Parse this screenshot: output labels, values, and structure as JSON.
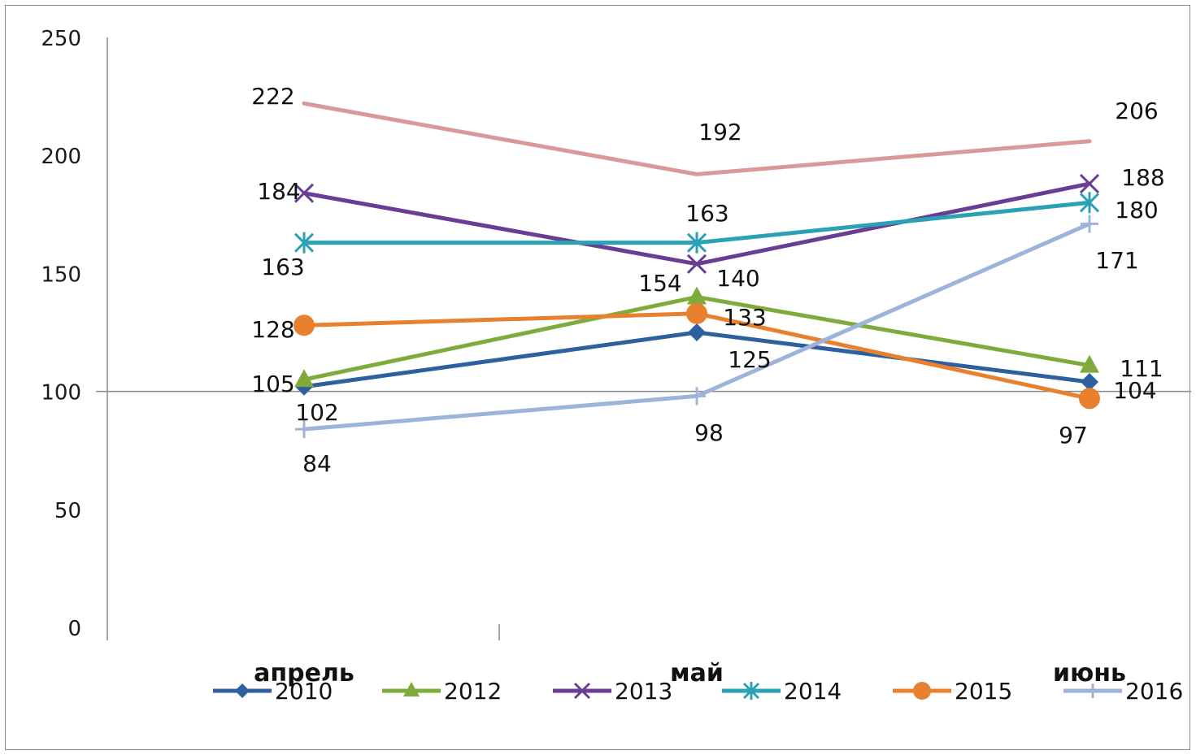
{
  "chart_data": {
    "type": "line",
    "title": "",
    "xlabel": "",
    "ylabel": "",
    "categories": [
      "апрель",
      "май",
      "июнь"
    ],
    "ylim": [
      0,
      250
    ],
    "yticks": [
      0,
      50,
      100,
      150,
      200,
      250
    ],
    "reference_line": 100,
    "legend_position": "bottom",
    "grid": false,
    "series": [
      {
        "name": "2010",
        "values": [
          102,
          125,
          104
        ],
        "color": "#2e5f9e",
        "marker": "diamond",
        "labels": [
          "102",
          "125",
          "104"
        ]
      },
      {
        "name": "2012",
        "values": [
          105,
          140,
          111
        ],
        "color": "#7fab3c",
        "marker": "triangle",
        "labels": [
          "105",
          "140",
          "111"
        ]
      },
      {
        "name": "2013",
        "values": [
          184,
          154,
          188
        ],
        "color": "#6a3d94",
        "marker": "x",
        "labels": [
          "184",
          "154",
          "188"
        ]
      },
      {
        "name": "2014",
        "values": [
          163,
          163,
          180
        ],
        "color": "#2aa1b5",
        "marker": "asterisk",
        "labels": [
          "163",
          "163",
          "180"
        ]
      },
      {
        "name": "2015",
        "values": [
          128,
          133,
          97
        ],
        "color": "#e8802d",
        "marker": "circle",
        "labels": [
          "128",
          "133",
          "97"
        ]
      },
      {
        "name": "2016",
        "values": [
          84,
          98,
          171
        ],
        "color": "#9db3db",
        "marker": "plus",
        "labels": [
          "84",
          "98",
          "171"
        ]
      },
      {
        "name": "",
        "values": [
          222,
          192,
          206
        ],
        "color": "#d9999a",
        "marker": "none",
        "labels": [
          "222",
          "192",
          "206"
        ]
      }
    ]
  }
}
